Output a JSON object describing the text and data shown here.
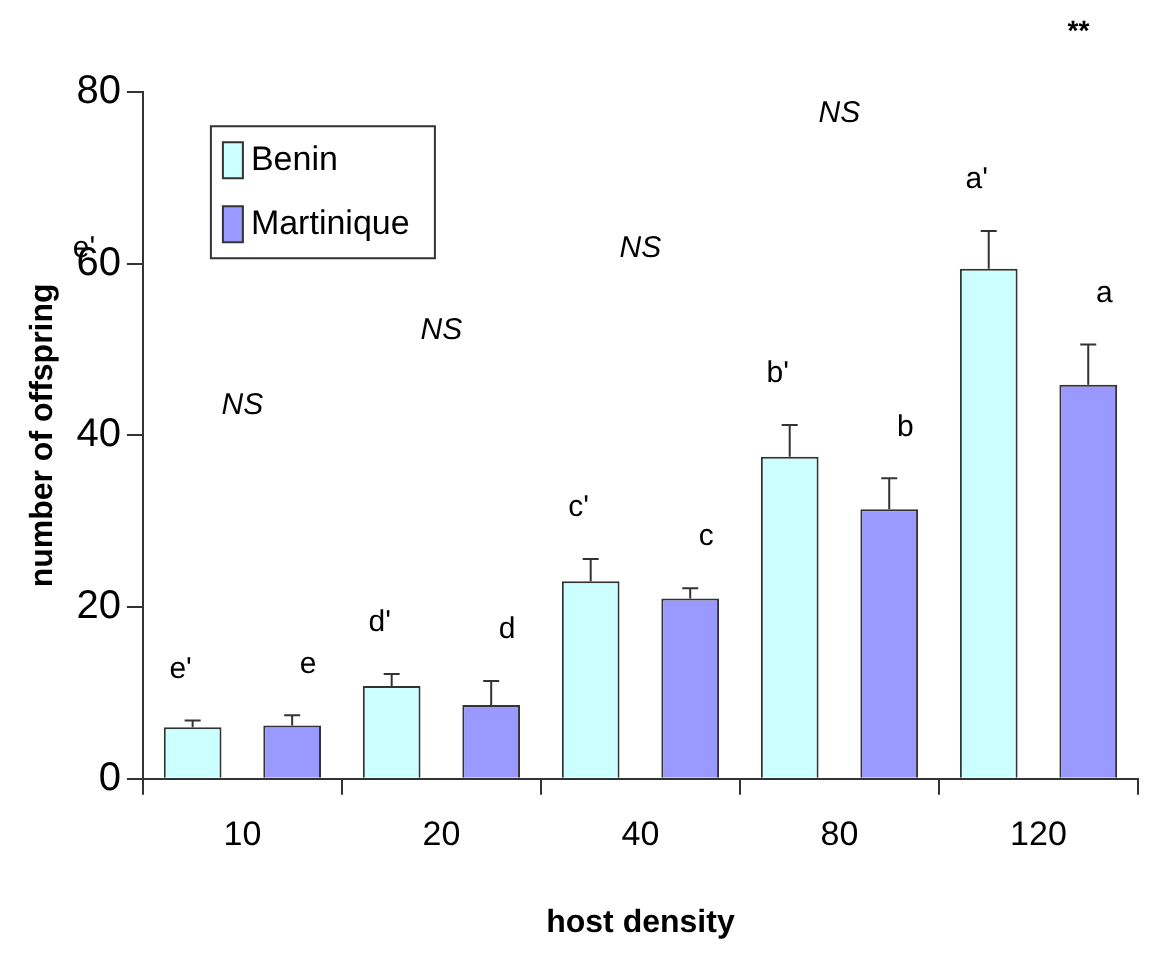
{
  "chart_data": {
    "type": "bar",
    "xlabel": "host density",
    "ylabel": "number of offspring",
    "categories": [
      "10",
      "20",
      "40",
      "80",
      "120"
    ],
    "series": [
      {
        "name": "Benin",
        "color": "#ccffff",
        "values": [
          6.0,
          10.8,
          23.0,
          37.5,
          59.4
        ],
        "errors": [
          [
            6.0,
            6.8
          ],
          [
            10.8,
            12.2
          ],
          [
            23.0,
            25.6
          ],
          [
            37.5,
            41.2
          ],
          [
            59.4,
            63.8
          ]
        ],
        "value_labels": [
          "e'",
          "d'",
          "c'",
          "b'",
          "a'"
        ]
      },
      {
        "name": "Martinique",
        "color": "#9999ff",
        "values": [
          6.2,
          8.6,
          21.0,
          31.4,
          45.9
        ],
        "errors": [
          [
            6.2,
            7.4
          ],
          [
            8.6,
            11.4
          ],
          [
            21.0,
            22.2
          ],
          [
            31.4,
            35.0
          ],
          [
            45.9,
            50.6
          ]
        ],
        "value_labels": [
          "e",
          "d",
          "c",
          "b",
          "a"
        ]
      }
    ],
    "ylim": [
      0,
      80
    ],
    "yticks": [
      0,
      20,
      40,
      60,
      80
    ],
    "grid": false,
    "legend": "top left",
    "annotations": [
      "NS",
      "NS",
      "NS",
      "NS",
      "**",
      "e'"
    ]
  }
}
